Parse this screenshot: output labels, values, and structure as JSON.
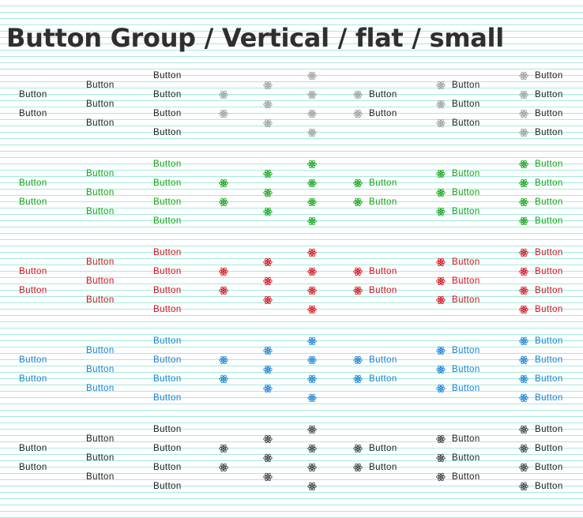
{
  "title": "Button Group / Vertical / flat / small",
  "button_label": "Button",
  "icon": "atom-icon",
  "variants": [
    {
      "name": "default",
      "color": "#9b9b9b",
      "text_color": "#222222"
    },
    {
      "name": "success",
      "color": "#13a316",
      "text_color": "#13a316"
    },
    {
      "name": "danger",
      "color": "#d4101d",
      "text_color": "#d4101d"
    },
    {
      "name": "primary",
      "color": "#1a80d6",
      "text_color": "#1a80d6"
    },
    {
      "name": "dark",
      "color": "#404040",
      "text_color": "#222222"
    }
  ],
  "groups": [
    {
      "kind": "text",
      "count": 2
    },
    {
      "kind": "text",
      "count": 3
    },
    {
      "kind": "text",
      "count": 4
    },
    {
      "kind": "icon",
      "count": 2
    },
    {
      "kind": "icon",
      "count": 3
    },
    {
      "kind": "icon",
      "count": 4
    },
    {
      "kind": "icon-text",
      "count": 2
    },
    {
      "kind": "icon-text",
      "count": 3
    },
    {
      "kind": "icon-text",
      "count": 4
    }
  ]
}
